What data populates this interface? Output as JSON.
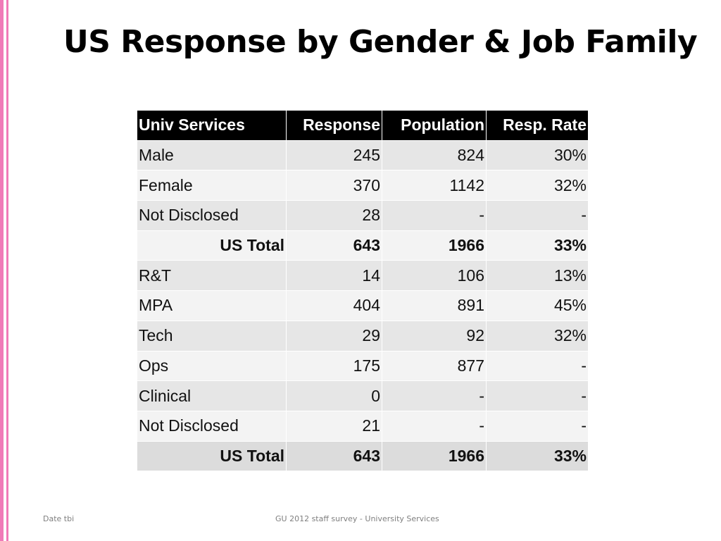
{
  "slide": {
    "title": "US Response by Gender & Job Family",
    "accent_color": "#f07ab8"
  },
  "table": {
    "headers": [
      "Univ Services",
      "Response",
      "Population",
      "Resp. Rate"
    ],
    "rows": [
      {
        "label": "Male",
        "response": "245",
        "population": "824",
        "rate": "30%"
      },
      {
        "label": "Female",
        "response": "370",
        "population": "1142",
        "rate": "32%"
      },
      {
        "label": "Not Disclosed",
        "response": "28",
        "population": "-",
        "rate": "-"
      },
      {
        "label": "US Total",
        "response": "643",
        "population": "1966",
        "rate": "33%"
      },
      {
        "label": "R&T",
        "response": "14",
        "population": "106",
        "rate": "13%"
      },
      {
        "label": "MPA",
        "response": "404",
        "population": "891",
        "rate": "45%"
      },
      {
        "label": "Tech",
        "response": "29",
        "population": "92",
        "rate": "32%"
      },
      {
        "label": "Ops",
        "response": "175",
        "population": "877",
        "rate": "-"
      },
      {
        "label": "Clinical",
        "response": "0",
        "population": "-",
        "rate": "-"
      },
      {
        "label": "Not Disclosed",
        "response": "21",
        "population": "-",
        "rate": "-"
      },
      {
        "label": "US Total",
        "response": "643",
        "population": "1966",
        "rate": "33%"
      }
    ]
  },
  "footer": {
    "left": "Date tbi",
    "center": "GU 2012 staff survey -  University Services"
  }
}
